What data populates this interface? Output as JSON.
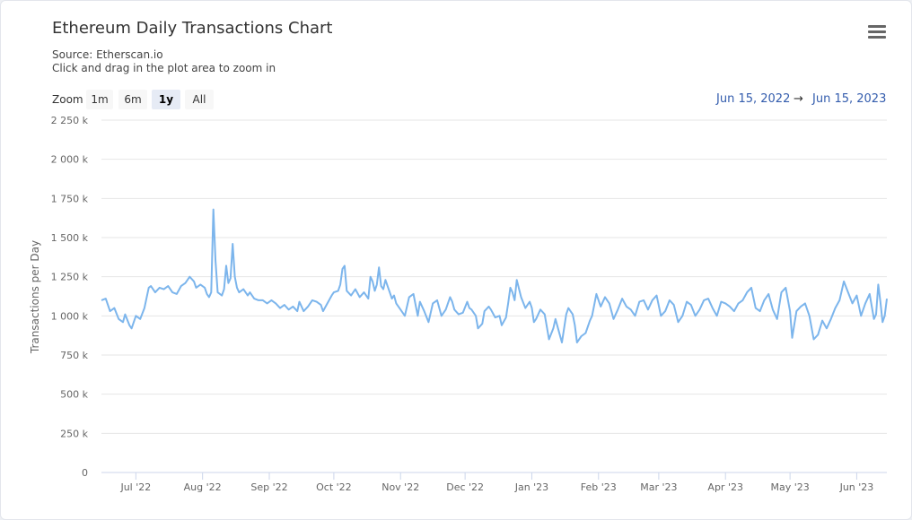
{
  "header": {
    "title": "Ethereum Daily Transactions Chart",
    "source": "Source: Etherscan.io",
    "hint": "Click and drag in the plot area to zoom in",
    "menu_icon": "hamburger-menu-icon"
  },
  "zoom": {
    "label": "Zoom",
    "buttons": [
      "1m",
      "6m",
      "1y",
      "All"
    ],
    "active": "1y"
  },
  "range": {
    "from": "Jun 15, 2022",
    "arrow": "→",
    "to": "Jun 15, 2023"
  },
  "colors": {
    "series": "#7cb5ec",
    "grid": "#e6e6e6",
    "axis": "#ccd6eb",
    "link": "#335cad"
  },
  "chart_data": {
    "type": "line",
    "title": "Ethereum Daily Transactions Chart",
    "ylabel": "Transactions per Day",
    "xlabel": "",
    "ylim": [
      0,
      2250000
    ],
    "y_ticks": [
      0,
      250000,
      500000,
      750000,
      1000000,
      1250000,
      1500000,
      1750000,
      2000000,
      2250000
    ],
    "y_tick_labels": [
      "0",
      "250 k",
      "500 k",
      "750 k",
      "1 000 k",
      "1 250 k",
      "1 500 k",
      "1 750 k",
      "2 000 k",
      "2 250 k"
    ],
    "x_ticks": [
      {
        "date": "2022-07-01",
        "label": "Jul '22"
      },
      {
        "date": "2022-08-01",
        "label": "Aug '22"
      },
      {
        "date": "2022-09-01",
        "label": "Sep '22"
      },
      {
        "date": "2022-10-01",
        "label": "Oct '22"
      },
      {
        "date": "2022-11-01",
        "label": "Nov '22"
      },
      {
        "date": "2022-12-01",
        "label": "Dec '22"
      },
      {
        "date": "2023-01-01",
        "label": "Jan '23"
      },
      {
        "date": "2023-02-01",
        "label": "Feb '23"
      },
      {
        "date": "2023-03-01",
        "label": "Mar '23"
      },
      {
        "date": "2023-04-01",
        "label": "Apr '23"
      },
      {
        "date": "2023-05-01",
        "label": "May '23"
      },
      {
        "date": "2023-06-01",
        "label": "Jun '23"
      }
    ],
    "grid": true,
    "legend": "none",
    "series": [
      {
        "name": "",
        "points": [
          [
            "2022-06-15",
            1100000
          ],
          [
            "2022-06-17",
            1110000
          ],
          [
            "2022-06-19",
            1030000
          ],
          [
            "2022-06-21",
            1050000
          ],
          [
            "2022-06-23",
            980000
          ],
          [
            "2022-06-25",
            960000
          ],
          [
            "2022-06-26",
            1010000
          ],
          [
            "2022-06-28",
            940000
          ],
          [
            "2022-06-29",
            920000
          ],
          [
            "2022-07-01",
            1000000
          ],
          [
            "2022-07-03",
            980000
          ],
          [
            "2022-07-05",
            1050000
          ],
          [
            "2022-07-07",
            1180000
          ],
          [
            "2022-07-08",
            1190000
          ],
          [
            "2022-07-10",
            1150000
          ],
          [
            "2022-07-12",
            1180000
          ],
          [
            "2022-07-14",
            1170000
          ],
          [
            "2022-07-16",
            1190000
          ],
          [
            "2022-07-18",
            1150000
          ],
          [
            "2022-07-20",
            1140000
          ],
          [
            "2022-07-22",
            1190000
          ],
          [
            "2022-07-24",
            1210000
          ],
          [
            "2022-07-26",
            1250000
          ],
          [
            "2022-07-28",
            1220000
          ],
          [
            "2022-07-29",
            1180000
          ],
          [
            "2022-07-31",
            1200000
          ],
          [
            "2022-08-02",
            1180000
          ],
          [
            "2022-08-03",
            1140000
          ],
          [
            "2022-08-04",
            1120000
          ],
          [
            "2022-08-05",
            1150000
          ],
          [
            "2022-08-06",
            1680000
          ],
          [
            "2022-08-07",
            1350000
          ],
          [
            "2022-08-08",
            1150000
          ],
          [
            "2022-08-10",
            1130000
          ],
          [
            "2022-08-11",
            1170000
          ],
          [
            "2022-08-12",
            1320000
          ],
          [
            "2022-08-13",
            1210000
          ],
          [
            "2022-08-14",
            1240000
          ],
          [
            "2022-08-15",
            1460000
          ],
          [
            "2022-08-16",
            1250000
          ],
          [
            "2022-08-17",
            1180000
          ],
          [
            "2022-08-18",
            1150000
          ],
          [
            "2022-08-20",
            1170000
          ],
          [
            "2022-08-22",
            1130000
          ],
          [
            "2022-08-23",
            1150000
          ],
          [
            "2022-08-25",
            1110000
          ],
          [
            "2022-08-27",
            1100000
          ],
          [
            "2022-08-29",
            1100000
          ],
          [
            "2022-08-31",
            1080000
          ],
          [
            "2022-09-02",
            1100000
          ],
          [
            "2022-09-04",
            1080000
          ],
          [
            "2022-09-06",
            1050000
          ],
          [
            "2022-09-08",
            1070000
          ],
          [
            "2022-09-10",
            1040000
          ],
          [
            "2022-09-12",
            1060000
          ],
          [
            "2022-09-14",
            1030000
          ],
          [
            "2022-09-15",
            1090000
          ],
          [
            "2022-09-17",
            1030000
          ],
          [
            "2022-09-19",
            1060000
          ],
          [
            "2022-09-21",
            1100000
          ],
          [
            "2022-09-23",
            1090000
          ],
          [
            "2022-09-25",
            1070000
          ],
          [
            "2022-09-26",
            1030000
          ],
          [
            "2022-09-28",
            1080000
          ],
          [
            "2022-09-30",
            1130000
          ],
          [
            "2022-10-01",
            1150000
          ],
          [
            "2022-10-03",
            1160000
          ],
          [
            "2022-10-04",
            1200000
          ],
          [
            "2022-10-05",
            1300000
          ],
          [
            "2022-10-06",
            1320000
          ],
          [
            "2022-10-07",
            1160000
          ],
          [
            "2022-10-09",
            1130000
          ],
          [
            "2022-10-11",
            1170000
          ],
          [
            "2022-10-13",
            1120000
          ],
          [
            "2022-10-15",
            1150000
          ],
          [
            "2022-10-17",
            1110000
          ],
          [
            "2022-10-18",
            1250000
          ],
          [
            "2022-10-19",
            1220000
          ],
          [
            "2022-10-20",
            1160000
          ],
          [
            "2022-10-21",
            1200000
          ],
          [
            "2022-10-22",
            1310000
          ],
          [
            "2022-10-23",
            1190000
          ],
          [
            "2022-10-24",
            1170000
          ],
          [
            "2022-10-25",
            1230000
          ],
          [
            "2022-10-27",
            1150000
          ],
          [
            "2022-10-28",
            1110000
          ],
          [
            "2022-10-29",
            1130000
          ],
          [
            "2022-10-30",
            1080000
          ],
          [
            "2022-11-01",
            1040000
          ],
          [
            "2022-11-03",
            1000000
          ],
          [
            "2022-11-05",
            1120000
          ],
          [
            "2022-11-07",
            1140000
          ],
          [
            "2022-11-09",
            1000000
          ],
          [
            "2022-11-10",
            1090000
          ],
          [
            "2022-11-12",
            1030000
          ],
          [
            "2022-11-14",
            960000
          ],
          [
            "2022-11-16",
            1080000
          ],
          [
            "2022-11-18",
            1100000
          ],
          [
            "2022-11-20",
            1000000
          ],
          [
            "2022-11-22",
            1040000
          ],
          [
            "2022-11-24",
            1120000
          ],
          [
            "2022-11-25",
            1090000
          ],
          [
            "2022-11-26",
            1040000
          ],
          [
            "2022-11-28",
            1010000
          ],
          [
            "2022-11-30",
            1020000
          ],
          [
            "2022-12-02",
            1090000
          ],
          [
            "2022-12-03",
            1050000
          ],
          [
            "2022-12-04",
            1040000
          ],
          [
            "2022-12-06",
            1000000
          ],
          [
            "2022-12-07",
            920000
          ],
          [
            "2022-12-09",
            950000
          ],
          [
            "2022-12-10",
            1030000
          ],
          [
            "2022-12-12",
            1060000
          ],
          [
            "2022-12-13",
            1040000
          ],
          [
            "2022-12-15",
            990000
          ],
          [
            "2022-12-17",
            1000000
          ],
          [
            "2022-12-18",
            940000
          ],
          [
            "2022-12-20",
            990000
          ],
          [
            "2022-12-21",
            1080000
          ],
          [
            "2022-12-22",
            1180000
          ],
          [
            "2022-12-23",
            1150000
          ],
          [
            "2022-12-24",
            1100000
          ],
          [
            "2022-12-25",
            1230000
          ],
          [
            "2022-12-27",
            1120000
          ],
          [
            "2022-12-29",
            1050000
          ],
          [
            "2022-12-31",
            1090000
          ],
          [
            "2023-01-01",
            1050000
          ],
          [
            "2023-01-02",
            960000
          ],
          [
            "2023-01-03",
            980000
          ],
          [
            "2023-01-05",
            1040000
          ],
          [
            "2023-01-07",
            1010000
          ],
          [
            "2023-01-09",
            850000
          ],
          [
            "2023-01-11",
            920000
          ],
          [
            "2023-01-12",
            980000
          ],
          [
            "2023-01-14",
            880000
          ],
          [
            "2023-01-15",
            830000
          ],
          [
            "2023-01-17",
            1010000
          ],
          [
            "2023-01-18",
            1050000
          ],
          [
            "2023-01-20",
            1010000
          ],
          [
            "2023-01-21",
            940000
          ],
          [
            "2023-01-22",
            830000
          ],
          [
            "2023-01-24",
            870000
          ],
          [
            "2023-01-26",
            890000
          ],
          [
            "2023-01-28",
            970000
          ],
          [
            "2023-01-29",
            1000000
          ],
          [
            "2023-01-31",
            1140000
          ],
          [
            "2023-02-02",
            1060000
          ],
          [
            "2023-02-04",
            1120000
          ],
          [
            "2023-02-06",
            1080000
          ],
          [
            "2023-02-08",
            980000
          ],
          [
            "2023-02-10",
            1040000
          ],
          [
            "2023-02-12",
            1110000
          ],
          [
            "2023-02-14",
            1060000
          ],
          [
            "2023-02-16",
            1040000
          ],
          [
            "2023-02-18",
            1000000
          ],
          [
            "2023-02-20",
            1090000
          ],
          [
            "2023-02-22",
            1100000
          ],
          [
            "2023-02-24",
            1040000
          ],
          [
            "2023-02-26",
            1100000
          ],
          [
            "2023-02-28",
            1130000
          ],
          [
            "2023-03-02",
            1000000
          ],
          [
            "2023-03-04",
            1030000
          ],
          [
            "2023-03-06",
            1100000
          ],
          [
            "2023-03-08",
            1070000
          ],
          [
            "2023-03-10",
            960000
          ],
          [
            "2023-03-12",
            1000000
          ],
          [
            "2023-03-14",
            1090000
          ],
          [
            "2023-03-16",
            1070000
          ],
          [
            "2023-03-18",
            1000000
          ],
          [
            "2023-03-20",
            1040000
          ],
          [
            "2023-03-22",
            1100000
          ],
          [
            "2023-03-24",
            1110000
          ],
          [
            "2023-03-26",
            1050000
          ],
          [
            "2023-03-28",
            1000000
          ],
          [
            "2023-03-30",
            1090000
          ],
          [
            "2023-04-01",
            1080000
          ],
          [
            "2023-04-03",
            1060000
          ],
          [
            "2023-04-05",
            1030000
          ],
          [
            "2023-04-07",
            1080000
          ],
          [
            "2023-04-09",
            1100000
          ],
          [
            "2023-04-11",
            1150000
          ],
          [
            "2023-04-13",
            1180000
          ],
          [
            "2023-04-15",
            1050000
          ],
          [
            "2023-04-17",
            1030000
          ],
          [
            "2023-04-19",
            1100000
          ],
          [
            "2023-04-21",
            1140000
          ],
          [
            "2023-04-23",
            1040000
          ],
          [
            "2023-04-25",
            980000
          ],
          [
            "2023-04-27",
            1150000
          ],
          [
            "2023-04-29",
            1180000
          ],
          [
            "2023-05-01",
            1030000
          ],
          [
            "2023-05-02",
            860000
          ],
          [
            "2023-05-04",
            1030000
          ],
          [
            "2023-05-06",
            1060000
          ],
          [
            "2023-05-08",
            1080000
          ],
          [
            "2023-05-10",
            1000000
          ],
          [
            "2023-05-12",
            850000
          ],
          [
            "2023-05-14",
            880000
          ],
          [
            "2023-05-16",
            970000
          ],
          [
            "2023-05-18",
            920000
          ],
          [
            "2023-05-20",
            980000
          ],
          [
            "2023-05-22",
            1050000
          ],
          [
            "2023-05-24",
            1100000
          ],
          [
            "2023-05-26",
            1220000
          ],
          [
            "2023-05-28",
            1150000
          ],
          [
            "2023-05-30",
            1080000
          ],
          [
            "2023-06-01",
            1130000
          ],
          [
            "2023-06-03",
            1000000
          ],
          [
            "2023-06-05",
            1080000
          ],
          [
            "2023-06-07",
            1140000
          ],
          [
            "2023-06-09",
            980000
          ],
          [
            "2023-06-10",
            1010000
          ],
          [
            "2023-06-11",
            1200000
          ],
          [
            "2023-06-12",
            1090000
          ],
          [
            "2023-06-13",
            960000
          ],
          [
            "2023-06-14",
            1000000
          ],
          [
            "2023-06-15",
            1110000
          ]
        ]
      }
    ]
  }
}
